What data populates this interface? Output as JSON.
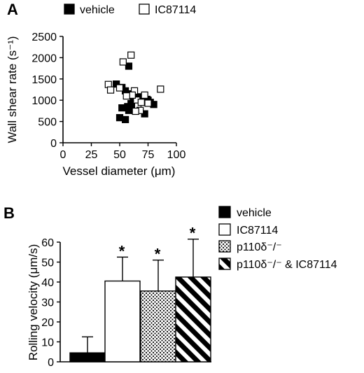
{
  "panels": {
    "a": {
      "label": "A"
    },
    "b": {
      "label": "B"
    }
  },
  "chart_data": [
    {
      "type": "scatter",
      "xlabel": "Vessel diameter (μm)",
      "ylabel": "Wall shear rate (s⁻¹)",
      "xlim": [
        0,
        100
      ],
      "ylim": [
        0,
        2500
      ],
      "xticks": [
        "0",
        "25",
        "50",
        "75",
        "100"
      ],
      "yticks": [
        "0",
        "500",
        "1000",
        "1500",
        "2000",
        "2500"
      ],
      "grid": false,
      "legend": "top",
      "series": [
        {
          "name": "vehicle",
          "marker": "filled-square",
          "points": [
            [
              47,
              1380
            ],
            [
              52,
              1300
            ],
            [
              55,
              1220
            ],
            [
              57,
              1150
            ],
            [
              62,
              1060
            ],
            [
              66,
              1080
            ],
            [
              70,
              990
            ],
            [
              74,
              1020
            ],
            [
              77,
              950
            ],
            [
              80,
              900
            ],
            [
              60,
              920
            ],
            [
              57,
              850
            ],
            [
              52,
              820
            ],
            [
              58,
              760
            ],
            [
              63,
              760
            ],
            [
              72,
              680
            ],
            [
              50,
              590
            ],
            [
              55,
              545
            ],
            [
              58,
              1800
            ],
            [
              70,
              1020
            ],
            [
              64,
              900
            ],
            [
              75,
              1000
            ]
          ]
        },
        {
          "name": "IC87114",
          "marker": "open-square",
          "points": [
            [
              40,
              1370
            ],
            [
              42,
              1240
            ],
            [
              50,
              1290
            ],
            [
              53,
              1900
            ],
            [
              60,
              2060
            ],
            [
              63,
              1220
            ],
            [
              65,
              1000
            ],
            [
              66,
              860
            ],
            [
              68,
              760
            ],
            [
              72,
              1120
            ],
            [
              75,
              930
            ],
            [
              86,
              1260
            ],
            [
              61,
              1120
            ],
            [
              56,
              1100
            ],
            [
              69,
              950
            ],
            [
              64,
              740
            ]
          ]
        }
      ]
    },
    {
      "type": "bar",
      "ylabel": "Rolling velocity (μm/s)",
      "ylim": [
        0,
        60
      ],
      "yticks": [
        "0",
        "10",
        "20",
        "30",
        "40",
        "50",
        "60"
      ],
      "categories": [
        "vehicle",
        "IC87114",
        "p110δ⁻/⁻",
        "p110δ⁻/⁻ & IC87114"
      ],
      "values": [
        4.5,
        40.5,
        35.5,
        42.5
      ],
      "errors": [
        8,
        12,
        15.5,
        19
      ],
      "significance": [
        "",
        "*",
        "*",
        "*"
      ],
      "fills": [
        "black",
        "white",
        "dots",
        "stripes"
      ],
      "grid": false,
      "legend": "top-right"
    }
  ]
}
